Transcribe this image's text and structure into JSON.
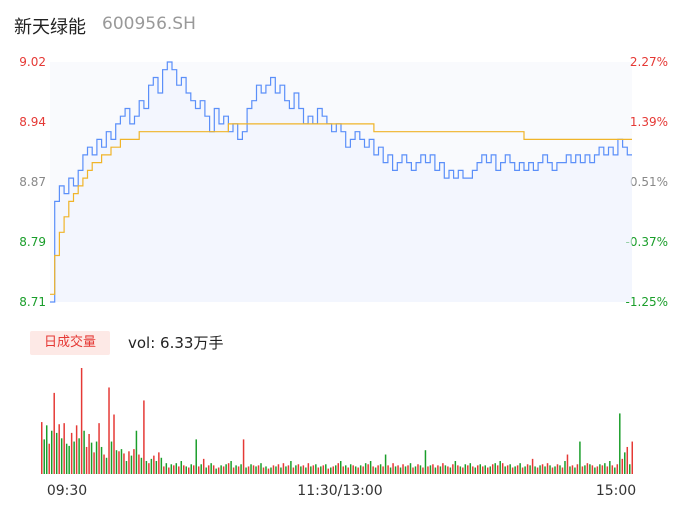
{
  "header": {
    "name": "新天绿能",
    "code": "600956.SH"
  },
  "volume_badge": "日成交量",
  "volume_text": "vol: 6.33万手",
  "colors": {
    "up": "#e53935",
    "down": "#1a9e2a",
    "neutral": "#888888",
    "price_line": "#5b8ff9",
    "avg_line": "#f0b429"
  },
  "chart_data": [
    {
      "type": "line",
      "title": "",
      "x_ticks": [
        "09:30",
        "11:30/13:00",
        "15:00"
      ],
      "y_left_ticks": [
        "9.02",
        "8.94",
        "8.87",
        "8.79",
        "8.71"
      ],
      "y_right_ticks": [
        "2.27%",
        "1.39%",
        "0.51%",
        "-0.37%",
        "-1.25%"
      ],
      "ylim": [
        8.71,
        9.02
      ],
      "series": [
        {
          "key": "price",
          "values": [
            8.71,
            8.84,
            8.86,
            8.85,
            8.87,
            8.86,
            8.88,
            8.9,
            8.91,
            8.9,
            8.92,
            8.91,
            8.93,
            8.92,
            8.94,
            8.95,
            8.96,
            8.94,
            8.95,
            8.97,
            8.96,
            8.99,
            9.0,
            8.98,
            9.01,
            9.02,
            9.01,
            8.99,
            9.0,
            8.98,
            8.97,
            8.96,
            8.97,
            8.95,
            8.93,
            8.96,
            8.94,
            8.95,
            8.93,
            8.94,
            8.92,
            8.93,
            8.96,
            8.97,
            8.99,
            8.98,
            8.99,
            9.0,
            8.98,
            8.99,
            8.97,
            8.96,
            8.98,
            8.96,
            8.94,
            8.95,
            8.94,
            8.96,
            8.95,
            8.94,
            8.93,
            8.94,
            8.93,
            8.91,
            8.92,
            8.93,
            8.92,
            8.91,
            8.92,
            8.9,
            8.91,
            8.89,
            8.9,
            8.88,
            8.89,
            8.9,
            8.89,
            8.88,
            8.89,
            8.9,
            8.89,
            8.9,
            8.88,
            8.89,
            8.87,
            8.88,
            8.87,
            8.88,
            8.87,
            8.87,
            8.88,
            8.89,
            8.9,
            8.89,
            8.9,
            8.88,
            8.89,
            8.9,
            8.89,
            8.88,
            8.89,
            8.88,
            8.89,
            8.88,
            8.89,
            8.9,
            8.89,
            8.88,
            8.89,
            8.89,
            8.9,
            8.89,
            8.9,
            8.89,
            8.9,
            8.89,
            8.9,
            8.91,
            8.9,
            8.91,
            8.9,
            8.92,
            8.91,
            8.9,
            8.9
          ]
        },
        {
          "key": "average",
          "values": [
            8.72,
            8.77,
            8.8,
            8.82,
            8.84,
            8.85,
            8.86,
            8.87,
            8.88,
            8.89,
            8.89,
            8.9,
            8.9,
            8.91,
            8.91,
            8.92,
            8.92,
            8.92,
            8.92,
            8.93,
            8.93,
            8.93,
            8.93,
            8.93,
            8.93,
            8.93,
            8.93,
            8.93,
            8.93,
            8.93,
            8.93,
            8.93,
            8.93,
            8.93,
            8.93,
            8.93,
            8.93,
            8.93,
            8.94,
            8.94,
            8.94,
            8.94,
            8.94,
            8.94,
            8.94,
            8.94,
            8.94,
            8.94,
            8.94,
            8.94,
            8.94,
            8.94,
            8.94,
            8.94,
            8.94,
            8.94,
            8.94,
            8.94,
            8.94,
            8.94,
            8.94,
            8.94,
            8.94,
            8.94,
            8.94,
            8.94,
            8.94,
            8.94,
            8.94,
            8.93,
            8.93,
            8.93,
            8.93,
            8.93,
            8.93,
            8.93,
            8.93,
            8.93,
            8.93,
            8.93,
            8.93,
            8.93,
            8.93,
            8.93,
            8.93,
            8.93,
            8.93,
            8.93,
            8.93,
            8.93,
            8.93,
            8.93,
            8.93,
            8.93,
            8.93,
            8.93,
            8.93,
            8.93,
            8.93,
            8.93,
            8.93,
            8.92,
            8.92,
            8.92,
            8.92,
            8.92,
            8.92,
            8.92,
            8.92,
            8.92,
            8.92,
            8.92,
            8.92,
            8.92,
            8.92,
            8.92,
            8.92,
            8.92,
            8.92,
            8.92,
            8.92,
            8.92,
            8.92,
            8.92,
            8.92
          ]
        }
      ]
    },
    {
      "type": "bar",
      "title": "",
      "values": [
        48,
        32,
        45,
        28,
        40,
        75,
        38,
        46,
        33,
        47,
        28,
        26,
        38,
        30,
        45,
        33,
        98,
        40,
        25,
        37,
        29,
        20,
        30,
        47,
        25,
        18,
        15,
        80,
        30,
        55,
        22,
        21,
        23,
        19,
        12,
        21,
        17,
        23,
        40,
        18,
        15,
        68,
        12,
        10,
        14,
        17,
        12,
        20,
        15,
        7,
        10,
        6,
        9,
        8,
        10,
        7,
        12,
        8,
        7,
        6,
        9,
        8,
        32,
        7,
        9,
        14,
        6,
        8,
        10,
        8,
        5,
        6,
        8,
        7,
        9,
        10,
        12,
        6,
        8,
        7,
        9,
        32,
        6,
        7,
        9,
        8,
        7,
        8,
        10,
        6,
        7,
        5,
        6,
        8,
        7,
        9,
        6,
        10,
        7,
        8,
        12,
        6,
        8,
        9,
        7,
        8,
        6,
        10,
        7,
        8,
        9,
        6,
        7,
        8,
        9,
        5,
        6,
        7,
        8,
        10,
        12,
        7,
        8,
        6,
        9,
        8,
        7,
        6,
        8,
        7,
        10,
        9,
        12,
        7,
        6,
        8,
        9,
        7,
        18,
        8,
        6,
        10,
        7,
        8,
        6,
        9,
        7,
        8,
        10,
        6,
        7,
        9,
        8,
        6,
        22,
        7,
        8,
        9,
        6,
        8,
        7,
        10,
        8,
        7,
        6,
        9,
        12,
        8,
        7,
        6,
        9,
        8,
        10,
        7,
        6,
        8,
        9,
        7,
        8,
        6,
        7,
        9,
        10,
        8,
        12,
        10,
        7,
        8,
        9,
        6,
        7,
        8,
        10,
        6,
        7,
        9,
        8,
        14,
        7,
        6,
        8,
        9,
        7,
        10,
        8,
        6,
        7,
        9,
        8,
        6,
        12,
        18,
        7,
        8,
        6,
        9,
        30,
        7,
        8,
        10,
        9,
        8,
        6,
        7,
        9,
        8,
        10,
        7,
        12,
        8,
        6,
        9,
        56,
        14,
        20,
        25,
        9,
        30
      ],
      "directions": [
        "up",
        "down",
        "down",
        "up",
        "down",
        "up",
        "down",
        "up",
        "down",
        "up",
        "down",
        "down",
        "up",
        "down",
        "up",
        "down",
        "up",
        "down",
        "up",
        "up",
        "down",
        "up",
        "down",
        "up",
        "down",
        "up",
        "down",
        "up",
        "down",
        "up",
        "down",
        "up",
        "down",
        "up",
        "down",
        "up",
        "down",
        "up",
        "down",
        "up",
        "down",
        "up",
        "down",
        "up",
        "down",
        "up",
        "down",
        "up",
        "down",
        "up",
        "down",
        "up",
        "down",
        "up",
        "down",
        "up",
        "down",
        "up",
        "down",
        "up",
        "down",
        "up",
        "down",
        "up",
        "down",
        "up",
        "down",
        "up",
        "down",
        "up",
        "down",
        "up",
        "down",
        "up",
        "down",
        "up",
        "down",
        "up",
        "down",
        "up",
        "down",
        "up",
        "down",
        "up",
        "down",
        "up",
        "down",
        "up",
        "down",
        "up",
        "down",
        "up",
        "down",
        "up",
        "down",
        "up",
        "down",
        "up",
        "down",
        "up",
        "down",
        "up",
        "down",
        "up",
        "down",
        "up",
        "down",
        "up",
        "down",
        "up",
        "down",
        "up",
        "down",
        "up",
        "down",
        "up",
        "down",
        "up",
        "down",
        "up",
        "down",
        "up",
        "down",
        "up",
        "down",
        "up",
        "down",
        "up",
        "down",
        "up",
        "down",
        "up",
        "down",
        "up",
        "down",
        "up",
        "down",
        "up",
        "down",
        "up",
        "down",
        "up",
        "down",
        "up",
        "down",
        "up",
        "down",
        "up",
        "down",
        "up",
        "down",
        "up",
        "down",
        "up",
        "down",
        "up",
        "down",
        "up",
        "down",
        "up",
        "down",
        "up",
        "down",
        "up",
        "down",
        "up",
        "down",
        "up",
        "down",
        "up",
        "down",
        "up",
        "down",
        "up",
        "down",
        "up",
        "down",
        "up",
        "down",
        "up",
        "down",
        "up",
        "down",
        "up",
        "down",
        "up",
        "down",
        "up",
        "down",
        "up",
        "down",
        "up",
        "down",
        "up",
        "down",
        "up",
        "down",
        "up",
        "down",
        "up",
        "down",
        "up",
        "down",
        "up",
        "down",
        "up",
        "down",
        "up",
        "down",
        "up",
        "down",
        "up",
        "down",
        "up",
        "down",
        "up",
        "down",
        "up",
        "down",
        "up",
        "down",
        "up",
        "down",
        "up",
        "down",
        "up",
        "down",
        "up",
        "down",
        "up",
        "down",
        "up",
        "down",
        "up",
        "down",
        "up",
        "down",
        "up",
        "down",
        "up",
        "down",
        "up",
        "down",
        "up",
        "down",
        "up",
        "down",
        "up",
        "down",
        "up"
      ]
    }
  ]
}
